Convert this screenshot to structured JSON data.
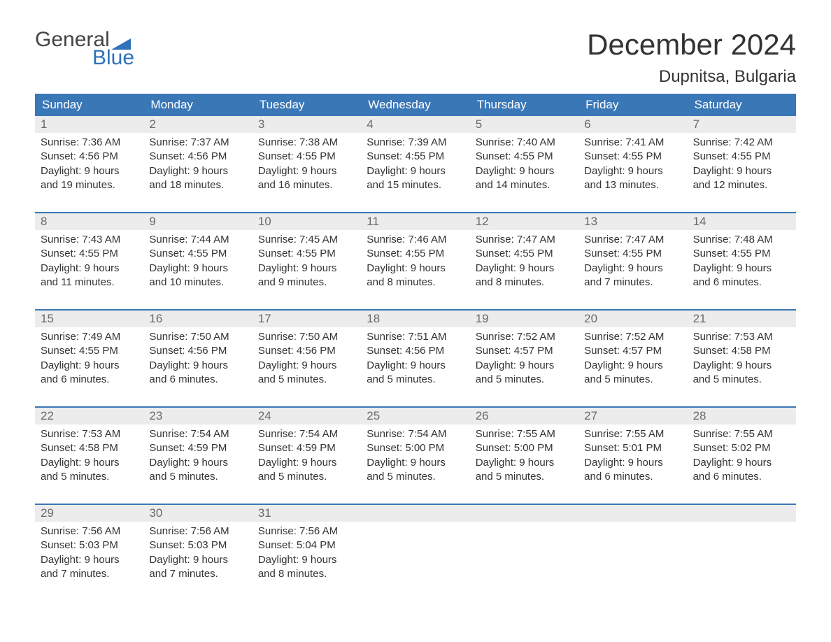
{
  "logo": {
    "line1": "General",
    "line2": "Blue"
  },
  "title": "December 2024",
  "location": "Dupnitsa, Bulgaria",
  "colors": {
    "header_bg": "#3a77b7",
    "header_text": "#ffffff",
    "daynum_bg": "#ececec",
    "daynum_text": "#6a6a6a",
    "body_text": "#333333",
    "logo_blue": "#2f72b9",
    "week_border": "#3a77b7"
  },
  "weekdays": [
    "Sunday",
    "Monday",
    "Tuesday",
    "Wednesday",
    "Thursday",
    "Friday",
    "Saturday"
  ],
  "weeks": [
    [
      {
        "d": "1",
        "sr": "7:36 AM",
        "ss": "4:56 PM",
        "dl": "9 hours and 19 minutes."
      },
      {
        "d": "2",
        "sr": "7:37 AM",
        "ss": "4:56 PM",
        "dl": "9 hours and 18 minutes."
      },
      {
        "d": "3",
        "sr": "7:38 AM",
        "ss": "4:55 PM",
        "dl": "9 hours and 16 minutes."
      },
      {
        "d": "4",
        "sr": "7:39 AM",
        "ss": "4:55 PM",
        "dl": "9 hours and 15 minutes."
      },
      {
        "d": "5",
        "sr": "7:40 AM",
        "ss": "4:55 PM",
        "dl": "9 hours and 14 minutes."
      },
      {
        "d": "6",
        "sr": "7:41 AM",
        "ss": "4:55 PM",
        "dl": "9 hours and 13 minutes."
      },
      {
        "d": "7",
        "sr": "7:42 AM",
        "ss": "4:55 PM",
        "dl": "9 hours and 12 minutes."
      }
    ],
    [
      {
        "d": "8",
        "sr": "7:43 AM",
        "ss": "4:55 PM",
        "dl": "9 hours and 11 minutes."
      },
      {
        "d": "9",
        "sr": "7:44 AM",
        "ss": "4:55 PM",
        "dl": "9 hours and 10 minutes."
      },
      {
        "d": "10",
        "sr": "7:45 AM",
        "ss": "4:55 PM",
        "dl": "9 hours and 9 minutes."
      },
      {
        "d": "11",
        "sr": "7:46 AM",
        "ss": "4:55 PM",
        "dl": "9 hours and 8 minutes."
      },
      {
        "d": "12",
        "sr": "7:47 AM",
        "ss": "4:55 PM",
        "dl": "9 hours and 8 minutes."
      },
      {
        "d": "13",
        "sr": "7:47 AM",
        "ss": "4:55 PM",
        "dl": "9 hours and 7 minutes."
      },
      {
        "d": "14",
        "sr": "7:48 AM",
        "ss": "4:55 PM",
        "dl": "9 hours and 6 minutes."
      }
    ],
    [
      {
        "d": "15",
        "sr": "7:49 AM",
        "ss": "4:55 PM",
        "dl": "9 hours and 6 minutes."
      },
      {
        "d": "16",
        "sr": "7:50 AM",
        "ss": "4:56 PM",
        "dl": "9 hours and 6 minutes."
      },
      {
        "d": "17",
        "sr": "7:50 AM",
        "ss": "4:56 PM",
        "dl": "9 hours and 5 minutes."
      },
      {
        "d": "18",
        "sr": "7:51 AM",
        "ss": "4:56 PM",
        "dl": "9 hours and 5 minutes."
      },
      {
        "d": "19",
        "sr": "7:52 AM",
        "ss": "4:57 PM",
        "dl": "9 hours and 5 minutes."
      },
      {
        "d": "20",
        "sr": "7:52 AM",
        "ss": "4:57 PM",
        "dl": "9 hours and 5 minutes."
      },
      {
        "d": "21",
        "sr": "7:53 AM",
        "ss": "4:58 PM",
        "dl": "9 hours and 5 minutes."
      }
    ],
    [
      {
        "d": "22",
        "sr": "7:53 AM",
        "ss": "4:58 PM",
        "dl": "9 hours and 5 minutes."
      },
      {
        "d": "23",
        "sr": "7:54 AM",
        "ss": "4:59 PM",
        "dl": "9 hours and 5 minutes."
      },
      {
        "d": "24",
        "sr": "7:54 AM",
        "ss": "4:59 PM",
        "dl": "9 hours and 5 minutes."
      },
      {
        "d": "25",
        "sr": "7:54 AM",
        "ss": "5:00 PM",
        "dl": "9 hours and 5 minutes."
      },
      {
        "d": "26",
        "sr": "7:55 AM",
        "ss": "5:00 PM",
        "dl": "9 hours and 5 minutes."
      },
      {
        "d": "27",
        "sr": "7:55 AM",
        "ss": "5:01 PM",
        "dl": "9 hours and 6 minutes."
      },
      {
        "d": "28",
        "sr": "7:55 AM",
        "ss": "5:02 PM",
        "dl": "9 hours and 6 minutes."
      }
    ],
    [
      {
        "d": "29",
        "sr": "7:56 AM",
        "ss": "5:03 PM",
        "dl": "9 hours and 7 minutes."
      },
      {
        "d": "30",
        "sr": "7:56 AM",
        "ss": "5:03 PM",
        "dl": "9 hours and 7 minutes."
      },
      {
        "d": "31",
        "sr": "7:56 AM",
        "ss": "5:04 PM",
        "dl": "9 hours and 8 minutes."
      },
      null,
      null,
      null,
      null
    ]
  ],
  "labels": {
    "sunrise": "Sunrise:",
    "sunset": "Sunset:",
    "daylight": "Daylight:"
  }
}
